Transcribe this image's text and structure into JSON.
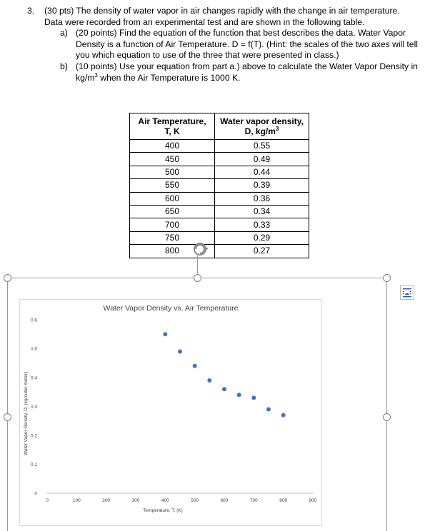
{
  "question": {
    "number": "3.",
    "intro": "(30 pts) The density of water vapor in air changes rapidly with the change in air temperature. Data were recorded from an experimental test and are shown in the following table.",
    "part_a_label": "a)",
    "part_a": "(20 points) Find the equation of the function that best describes the data. Water Vapor Density is a function of Air Temperature. D = f(T). (Hint: the scales of the two axes will tell you which equation to use of the three that were presented in class.)",
    "part_b_label": "b)",
    "part_b_pre": "(10 points) Use your equation from part a.) above to calculate the Water Vapor Density in kg/m",
    "part_b_sup": "3",
    "part_b_post": " when the Air Temperature is 1000 K."
  },
  "table": {
    "header_temp_line1": "Air Temperature,",
    "header_temp_line2": "T, K",
    "header_density_line1": "Water vapor density,",
    "header_density_line2_pre": "D, kg/m",
    "header_density_sup": "3",
    "rows": [
      {
        "t": "400",
        "d": "0.55"
      },
      {
        "t": "450",
        "d": "0.49"
      },
      {
        "t": "500",
        "d": "0.44"
      },
      {
        "t": "550",
        "d": "0.39"
      },
      {
        "t": "600",
        "d": "0.36"
      },
      {
        "t": "650",
        "d": "0.34"
      },
      {
        "t": "700",
        "d": "0.33"
      },
      {
        "t": "750",
        "d": "0.29"
      },
      {
        "t": "800",
        "d": "0.27"
      }
    ]
  },
  "colors": {
    "marker": "#4472c4",
    "axis": "#bfbfbf",
    "text": "#404040",
    "handle": "#7f7f7f"
  },
  "icons": [
    "rotate-handle-icon",
    "layout-options-icon"
  ],
  "chart_data": {
    "type": "scatter",
    "title": "Water Vapor Density vs. Air Temperature",
    "xlabel": "Temperature, T, (K)",
    "ylabel": "Water Vapor Density, D, (kg/cubic meter)",
    "xlim": [
      0,
      900
    ],
    "ylim": [
      0,
      0.6
    ],
    "x_ticks": [
      "0",
      "100",
      "200",
      "300",
      "400",
      "500",
      "600",
      "700",
      "800",
      "900"
    ],
    "y_ticks": [
      "0",
      "0.1",
      "0.2",
      "0.3",
      "0.4",
      "0.5",
      "0.6"
    ],
    "grid": false,
    "x": [
      400,
      450,
      500,
      550,
      600,
      650,
      700,
      750,
      800
    ],
    "y": [
      0.55,
      0.49,
      0.44,
      0.39,
      0.36,
      0.34,
      0.33,
      0.29,
      0.27
    ]
  }
}
